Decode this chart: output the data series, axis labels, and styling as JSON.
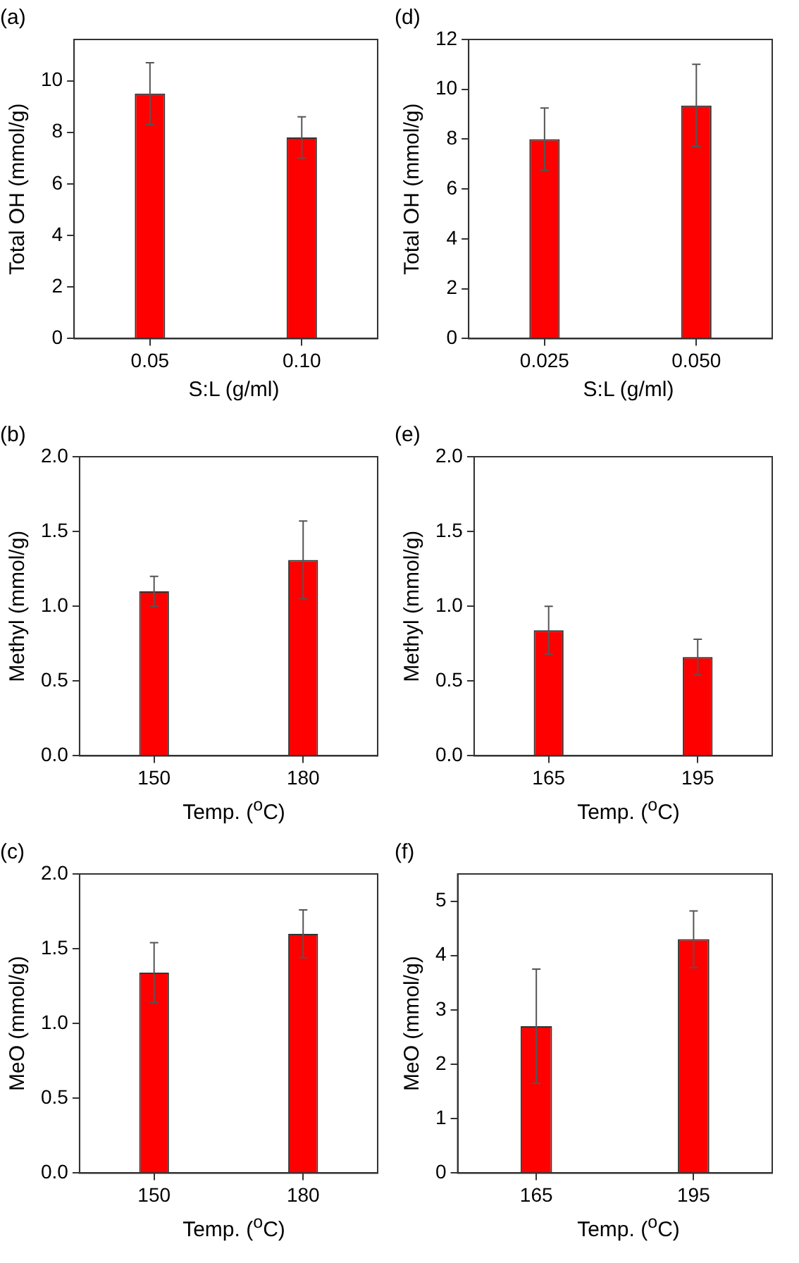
{
  "chart_data": [
    {
      "type": "bar",
      "title": "(a)",
      "xlabel": "S:L (g/ml)",
      "ylabel": "Total OH (mmol/g)",
      "categories": [
        "0.05",
        "0.10"
      ],
      "values": [
        9.5,
        7.8
      ],
      "errors": [
        1.2,
        0.8
      ],
      "color": "#ff0000",
      "ylim": [
        0,
        11.6
      ],
      "yticks": [
        0,
        2,
        4,
        6,
        8,
        10
      ],
      "grid": false,
      "legend": false
    },
    {
      "type": "bar",
      "title": "(d)",
      "xlabel": "S:L (g/ml)",
      "ylabel": "Total OH (mmol/g)",
      "categories": [
        "0.025",
        "0.050"
      ],
      "values": [
        8.0,
        9.35
      ],
      "errors": [
        1.25,
        1.65
      ],
      "color": "#ff0000",
      "ylim": [
        0,
        12
      ],
      "yticks": [
        0,
        2,
        4,
        6,
        8,
        10,
        12
      ],
      "grid": false,
      "legend": false
    },
    {
      "type": "bar",
      "title": "(b)",
      "xlabel": "Temp. ($^{o}$C)",
      "ylabel": "Methyl (mmol/g)",
      "categories": [
        "150",
        "180"
      ],
      "values": [
        1.1,
        1.31
      ],
      "errors": [
        0.1,
        0.26
      ],
      "color": "#ff0000",
      "ylim": [
        0,
        2
      ],
      "yticks": [
        {
          "value": 0,
          "label": "0.0"
        },
        {
          "value": 0.5,
          "label": "0.5"
        },
        {
          "value": 1,
          "label": "1.0"
        },
        {
          "value": 1.5,
          "label": "1.5"
        },
        {
          "value": 2,
          "label": "2.0"
        }
      ],
      "grid": false,
      "legend": false
    },
    {
      "type": "bar",
      "title": "(e)",
      "xlabel": "Temp. ($^{o}$C)",
      "ylabel": "Methyl (mmol/g)",
      "categories": [
        "165",
        "195"
      ],
      "values": [
        0.84,
        0.66
      ],
      "errors": [
        0.16,
        0.12
      ],
      "color": "#ff0000",
      "ylim": [
        0,
        2
      ],
      "yticks": [
        {
          "value": 0,
          "label": "0.0"
        },
        {
          "value": 0.5,
          "label": "0.5"
        },
        {
          "value": 1,
          "label": "1.0"
        },
        {
          "value": 1.5,
          "label": "1.5"
        },
        {
          "value": 2,
          "label": "2.0"
        }
      ],
      "grid": false,
      "legend": false
    },
    {
      "type": "bar",
      "title": "(c)",
      "xlabel": "Temp. ($^{o}$C)",
      "ylabel": "MeO (mmol/g)",
      "categories": [
        "150",
        "180"
      ],
      "values": [
        1.34,
        1.6
      ],
      "errors": [
        0.2,
        0.16
      ],
      "color": "#ff0000",
      "ylim": [
        0,
        2
      ],
      "yticks": [
        {
          "value": 0,
          "label": "0.0"
        },
        {
          "value": 0.5,
          "label": "0.5"
        },
        {
          "value": 1,
          "label": "1.0"
        },
        {
          "value": 1.5,
          "label": "1.5"
        },
        {
          "value": 2,
          "label": "2.0"
        }
      ],
      "grid": false,
      "legend": false
    },
    {
      "type": "bar",
      "title": "(f)",
      "xlabel": "Temp. ($^{o}$C)",
      "ylabel": "MeO (mmol/g)",
      "categories": [
        "165",
        "195"
      ],
      "values": [
        2.7,
        4.3
      ],
      "errors": [
        1.05,
        0.52
      ],
      "color": "#ff0000",
      "ylim": [
        0,
        5.5
      ],
      "yticks": [
        0,
        1,
        2,
        3,
        4,
        5
      ],
      "grid": false,
      "legend": false
    }
  ]
}
